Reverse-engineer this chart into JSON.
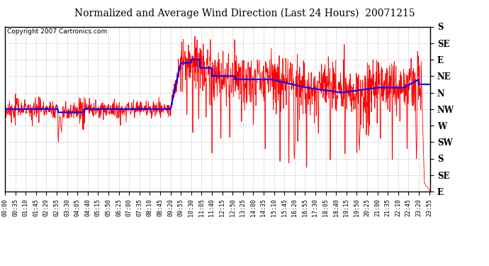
{
  "title": "Normalized and Average Wind Direction (Last 24 Hours)  20071215",
  "copyright": "Copyright 2007 Cartronics.com",
  "background_color": "#ffffff",
  "plot_bg_color": "#ffffff",
  "grid_color": "#bbbbbb",
  "red_color": "#ff0000",
  "blue_color": "#0000ff",
  "ytick_labels": [
    "S",
    "SE",
    "E",
    "NE",
    "N",
    "NW",
    "W",
    "SW",
    "S",
    "SE",
    "E"
  ],
  "ytick_values": [
    0,
    1,
    2,
    3,
    4,
    5,
    6,
    7,
    8,
    9,
    10
  ],
  "ylim": [
    0,
    10
  ],
  "total_minutes": 1440,
  "x_tick_step_minutes": 35,
  "xtick_labels": [
    "00:00",
    "00:35",
    "01:10",
    "01:45",
    "02:20",
    "02:55",
    "03:30",
    "04:05",
    "04:40",
    "05:15",
    "05:50",
    "06:25",
    "07:00",
    "07:35",
    "08:10",
    "08:45",
    "09:20",
    "09:55",
    "10:30",
    "11:05",
    "11:40",
    "12:15",
    "12:50",
    "13:25",
    "14:00",
    "14:35",
    "15:10",
    "15:45",
    "16:20",
    "16:55",
    "17:30",
    "18:05",
    "18:40",
    "19:15",
    "19:50",
    "20:25",
    "21:00",
    "21:35",
    "22:10",
    "22:45",
    "23:20",
    "23:55"
  ]
}
